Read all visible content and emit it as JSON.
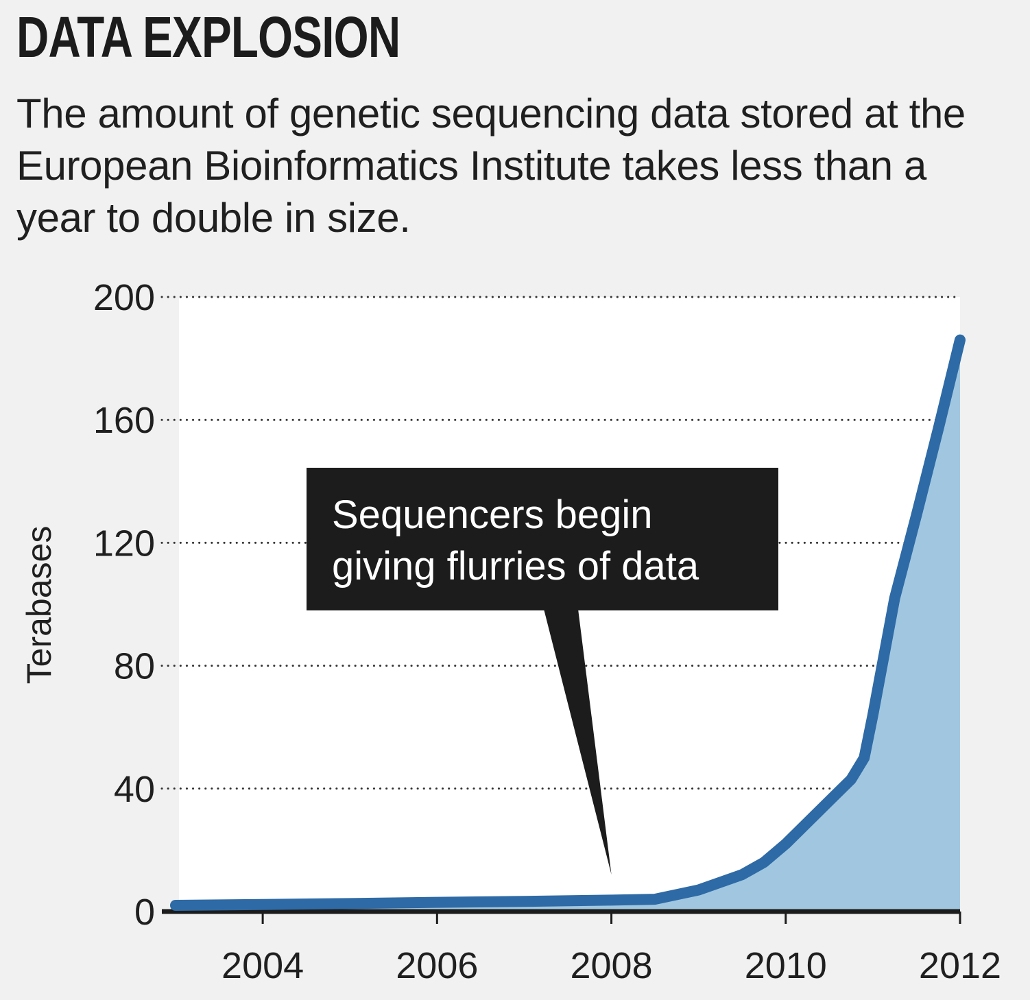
{
  "header": {
    "title": "DATA EXPLOSION",
    "subtitle": "The amount of genetic sequencing data stored at the European Bioinformatics Institute takes less than a year to double in size."
  },
  "chart_data": {
    "type": "area",
    "title": "DATA EXPLOSION",
    "subtitle": "The amount of genetic sequencing data stored at the European Bioinformatics Institute takes less than a year to double in size.",
    "xlabel": "",
    "ylabel": "Terabases",
    "xlim": [
      2003.0,
      2012.0
    ],
    "ylim": [
      0,
      200
    ],
    "x_ticks": [
      2004,
      2006,
      2008,
      2010,
      2012
    ],
    "y_ticks": [
      0,
      40,
      80,
      120,
      160,
      200
    ],
    "grid": "horizontal dotted",
    "series": [
      {
        "x": [
          2003.0,
          2004.0,
          2005.0,
          2006.0,
          2007.0,
          2008.0,
          2008.5,
          2009.0,
          2009.5,
          2009.75,
          2010.0,
          2010.5,
          2010.75,
          2010.9,
          2011.0,
          2011.25,
          2011.5,
          2011.75,
          2012.0
        ],
        "y": [
          2,
          2.3,
          2.6,
          3,
          3.3,
          3.7,
          4,
          7,
          12,
          16,
          22,
          36,
          43,
          50,
          64,
          102,
          129,
          157,
          186
        ],
        "color": "#2e6aa6",
        "fill": "#a1c7e0"
      }
    ],
    "annotations": [
      {
        "text_lines": [
          "Sequencers begin",
          "giving flurries of data"
        ],
        "x": 2008.0,
        "y": 12,
        "style": "black callout box with pointer"
      }
    ]
  }
}
